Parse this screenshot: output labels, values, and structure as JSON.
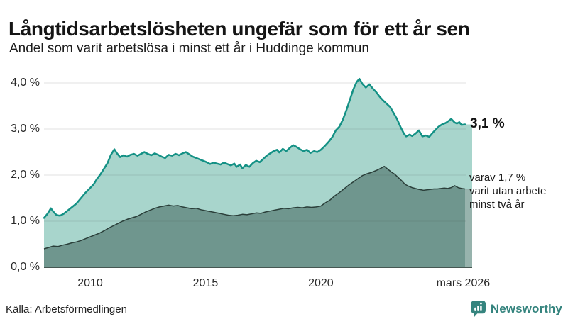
{
  "header": {
    "title": "Långtidsarbetslösheten ungefär som för ett år sen",
    "subtitle": "Andel som varit arbetslösa i minst ett år i Huddinge kommun"
  },
  "chart_data": {
    "type": "area",
    "title": "Långtidsarbetslösheten ungefär som för ett år sen",
    "subtitle": "Andel som varit arbetslösa i minst ett år i Huddinge kommun",
    "xlabel": "",
    "ylabel": "",
    "unit": "%",
    "grid": true,
    "legend_position": "right-annotations",
    "x_axis": {
      "range": [
        2008.0,
        2026.25
      ],
      "ticks": [
        {
          "label": "2010",
          "year": 2010
        },
        {
          "label": "2015",
          "year": 2015
        },
        {
          "label": "2020",
          "year": 2020
        },
        {
          "label": "mars 2026",
          "year": 2026.17
        }
      ]
    },
    "y_axis": {
      "range": [
        0,
        4.35
      ],
      "ticks": [
        {
          "label": "0,0 %",
          "value": 0
        },
        {
          "label": "1,0 %",
          "value": 1
        },
        {
          "label": "2,0 %",
          "value": 2
        },
        {
          "label": "3,0 %",
          "value": 3
        },
        {
          "label": "4,0 %",
          "value": 4
        }
      ]
    },
    "series": [
      {
        "id": "total",
        "description": "Andel arbetslösa minst ett år",
        "end_value": 3.1,
        "end_label": "3,1 %",
        "line_color": "#149185",
        "fill_color": "#a8d5cc",
        "line_width": 2.5,
        "points": [
          [
            2008.0,
            1.07
          ],
          [
            2008.15,
            1.16
          ],
          [
            2008.3,
            1.28
          ],
          [
            2008.4,
            1.21
          ],
          [
            2008.55,
            1.13
          ],
          [
            2008.7,
            1.12
          ],
          [
            2008.85,
            1.16
          ],
          [
            2009.0,
            1.22
          ],
          [
            2009.2,
            1.3
          ],
          [
            2009.4,
            1.38
          ],
          [
            2009.6,
            1.5
          ],
          [
            2009.8,
            1.62
          ],
          [
            2010.0,
            1.72
          ],
          [
            2010.15,
            1.8
          ],
          [
            2010.3,
            1.92
          ],
          [
            2010.45,
            2.02
          ],
          [
            2010.6,
            2.14
          ],
          [
            2010.75,
            2.26
          ],
          [
            2010.9,
            2.44
          ],
          [
            2011.05,
            2.56
          ],
          [
            2011.15,
            2.48
          ],
          [
            2011.3,
            2.39
          ],
          [
            2011.45,
            2.43
          ],
          [
            2011.6,
            2.4
          ],
          [
            2011.75,
            2.44
          ],
          [
            2011.9,
            2.46
          ],
          [
            2012.05,
            2.42
          ],
          [
            2012.2,
            2.46
          ],
          [
            2012.35,
            2.5
          ],
          [
            2012.5,
            2.46
          ],
          [
            2012.65,
            2.43
          ],
          [
            2012.8,
            2.47
          ],
          [
            2012.95,
            2.44
          ],
          [
            2013.1,
            2.4
          ],
          [
            2013.25,
            2.37
          ],
          [
            2013.4,
            2.44
          ],
          [
            2013.55,
            2.42
          ],
          [
            2013.7,
            2.46
          ],
          [
            2013.85,
            2.43
          ],
          [
            2014.0,
            2.47
          ],
          [
            2014.15,
            2.5
          ],
          [
            2014.3,
            2.45
          ],
          [
            2014.45,
            2.4
          ],
          [
            2014.6,
            2.37
          ],
          [
            2014.75,
            2.34
          ],
          [
            2014.9,
            2.31
          ],
          [
            2015.05,
            2.28
          ],
          [
            2015.2,
            2.24
          ],
          [
            2015.35,
            2.27
          ],
          [
            2015.5,
            2.25
          ],
          [
            2015.65,
            2.23
          ],
          [
            2015.8,
            2.27
          ],
          [
            2015.95,
            2.24
          ],
          [
            2016.1,
            2.21
          ],
          [
            2016.25,
            2.25
          ],
          [
            2016.35,
            2.18
          ],
          [
            2016.5,
            2.23
          ],
          [
            2016.6,
            2.15
          ],
          [
            2016.75,
            2.22
          ],
          [
            2016.9,
            2.18
          ],
          [
            2017.05,
            2.26
          ],
          [
            2017.2,
            2.31
          ],
          [
            2017.35,
            2.28
          ],
          [
            2017.5,
            2.35
          ],
          [
            2017.65,
            2.42
          ],
          [
            2017.8,
            2.47
          ],
          [
            2017.95,
            2.52
          ],
          [
            2018.1,
            2.55
          ],
          [
            2018.2,
            2.49
          ],
          [
            2018.35,
            2.57
          ],
          [
            2018.5,
            2.52
          ],
          [
            2018.65,
            2.59
          ],
          [
            2018.8,
            2.65
          ],
          [
            2018.95,
            2.61
          ],
          [
            2019.1,
            2.56
          ],
          [
            2019.25,
            2.52
          ],
          [
            2019.4,
            2.55
          ],
          [
            2019.55,
            2.48
          ],
          [
            2019.7,
            2.52
          ],
          [
            2019.85,
            2.5
          ],
          [
            2020.0,
            2.55
          ],
          [
            2020.15,
            2.62
          ],
          [
            2020.35,
            2.73
          ],
          [
            2020.5,
            2.83
          ],
          [
            2020.65,
            2.97
          ],
          [
            2020.8,
            3.05
          ],
          [
            2020.95,
            3.2
          ],
          [
            2021.1,
            3.4
          ],
          [
            2021.25,
            3.62
          ],
          [
            2021.4,
            3.85
          ],
          [
            2021.55,
            4.02
          ],
          [
            2021.67,
            4.09
          ],
          [
            2021.8,
            3.98
          ],
          [
            2021.95,
            3.9
          ],
          [
            2022.1,
            3.97
          ],
          [
            2022.25,
            3.88
          ],
          [
            2022.4,
            3.8
          ],
          [
            2022.55,
            3.7
          ],
          [
            2022.7,
            3.62
          ],
          [
            2022.85,
            3.55
          ],
          [
            2023.0,
            3.48
          ],
          [
            2023.15,
            3.35
          ],
          [
            2023.3,
            3.22
          ],
          [
            2023.45,
            3.05
          ],
          [
            2023.6,
            2.9
          ],
          [
            2023.7,
            2.84
          ],
          [
            2023.85,
            2.88
          ],
          [
            2023.95,
            2.85
          ],
          [
            2024.1,
            2.9
          ],
          [
            2024.25,
            2.97
          ],
          [
            2024.4,
            2.84
          ],
          [
            2024.55,
            2.86
          ],
          [
            2024.7,
            2.83
          ],
          [
            2024.85,
            2.92
          ],
          [
            2025.0,
            3.0
          ],
          [
            2025.1,
            3.05
          ],
          [
            2025.25,
            3.1
          ],
          [
            2025.4,
            3.13
          ],
          [
            2025.55,
            3.18
          ],
          [
            2025.65,
            3.22
          ],
          [
            2025.8,
            3.14
          ],
          [
            2025.9,
            3.12
          ],
          [
            2026.0,
            3.15
          ],
          [
            2026.1,
            3.09
          ],
          [
            2026.25,
            3.1
          ]
        ]
      },
      {
        "id": "two_year",
        "description": "varav utan arbete minst två år",
        "end_value": 1.7,
        "end_label": "varav 1,7 %\nvarit utan arbete\nminst två år",
        "line_color": "#2b3f3a",
        "fill_color": "#6f968e",
        "line_width": 1.5,
        "points": [
          [
            2008.0,
            0.4
          ],
          [
            2008.2,
            0.43
          ],
          [
            2008.4,
            0.46
          ],
          [
            2008.6,
            0.45
          ],
          [
            2008.8,
            0.48
          ],
          [
            2009.0,
            0.5
          ],
          [
            2009.2,
            0.53
          ],
          [
            2009.4,
            0.55
          ],
          [
            2009.6,
            0.58
          ],
          [
            2009.8,
            0.62
          ],
          [
            2010.0,
            0.66
          ],
          [
            2010.2,
            0.7
          ],
          [
            2010.4,
            0.74
          ],
          [
            2010.6,
            0.79
          ],
          [
            2010.8,
            0.85
          ],
          [
            2011.0,
            0.9
          ],
          [
            2011.2,
            0.95
          ],
          [
            2011.4,
            1.0
          ],
          [
            2011.6,
            1.04
          ],
          [
            2011.8,
            1.07
          ],
          [
            2012.0,
            1.1
          ],
          [
            2012.2,
            1.15
          ],
          [
            2012.4,
            1.2
          ],
          [
            2012.6,
            1.24
          ],
          [
            2012.8,
            1.28
          ],
          [
            2013.0,
            1.31
          ],
          [
            2013.2,
            1.33
          ],
          [
            2013.4,
            1.35
          ],
          [
            2013.6,
            1.33
          ],
          [
            2013.8,
            1.34
          ],
          [
            2014.0,
            1.31
          ],
          [
            2014.2,
            1.29
          ],
          [
            2014.4,
            1.27
          ],
          [
            2014.6,
            1.28
          ],
          [
            2014.8,
            1.25
          ],
          [
            2015.0,
            1.23
          ],
          [
            2015.2,
            1.21
          ],
          [
            2015.4,
            1.19
          ],
          [
            2015.6,
            1.17
          ],
          [
            2015.8,
            1.15
          ],
          [
            2016.0,
            1.13
          ],
          [
            2016.2,
            1.12
          ],
          [
            2016.4,
            1.13
          ],
          [
            2016.6,
            1.15
          ],
          [
            2016.8,
            1.14
          ],
          [
            2017.0,
            1.16
          ],
          [
            2017.2,
            1.18
          ],
          [
            2017.4,
            1.17
          ],
          [
            2017.6,
            1.2
          ],
          [
            2017.8,
            1.22
          ],
          [
            2018.0,
            1.24
          ],
          [
            2018.2,
            1.26
          ],
          [
            2018.4,
            1.28
          ],
          [
            2018.6,
            1.27
          ],
          [
            2018.8,
            1.29
          ],
          [
            2019.0,
            1.3
          ],
          [
            2019.2,
            1.29
          ],
          [
            2019.4,
            1.31
          ],
          [
            2019.6,
            1.3
          ],
          [
            2019.8,
            1.31
          ],
          [
            2020.0,
            1.33
          ],
          [
            2020.2,
            1.4
          ],
          [
            2020.4,
            1.46
          ],
          [
            2020.6,
            1.55
          ],
          [
            2020.8,
            1.62
          ],
          [
            2021.0,
            1.7
          ],
          [
            2021.2,
            1.78
          ],
          [
            2021.4,
            1.85
          ],
          [
            2021.6,
            1.92
          ],
          [
            2021.8,
            1.99
          ],
          [
            2022.0,
            2.03
          ],
          [
            2022.2,
            2.06
          ],
          [
            2022.4,
            2.1
          ],
          [
            2022.6,
            2.15
          ],
          [
            2022.75,
            2.19
          ],
          [
            2022.9,
            2.13
          ],
          [
            2023.05,
            2.07
          ],
          [
            2023.2,
            2.02
          ],
          [
            2023.35,
            1.95
          ],
          [
            2023.5,
            1.88
          ],
          [
            2023.65,
            1.8
          ],
          [
            2023.8,
            1.76
          ],
          [
            2023.95,
            1.73
          ],
          [
            2024.1,
            1.71
          ],
          [
            2024.25,
            1.69
          ],
          [
            2024.45,
            1.67
          ],
          [
            2024.6,
            1.68
          ],
          [
            2024.75,
            1.69
          ],
          [
            2024.9,
            1.7
          ],
          [
            2025.05,
            1.7
          ],
          [
            2025.2,
            1.71
          ],
          [
            2025.35,
            1.72
          ],
          [
            2025.5,
            1.71
          ],
          [
            2025.65,
            1.73
          ],
          [
            2025.8,
            1.77
          ],
          [
            2025.95,
            1.73
          ],
          [
            2026.1,
            1.71
          ],
          [
            2026.25,
            1.7
          ]
        ]
      }
    ],
    "annotations": {
      "total": "3,1 %",
      "two_year": "varav 1,7 %\nvarit utan arbete\nminst två år"
    },
    "gridline_color": "rgba(60,75,75,0.16)",
    "baseline_color": "#2b3f3a"
  },
  "footer": {
    "source": "Källa: Arbetsförmedlingen",
    "logo_text": "Newsworthy",
    "logo_color": "#35847e"
  }
}
